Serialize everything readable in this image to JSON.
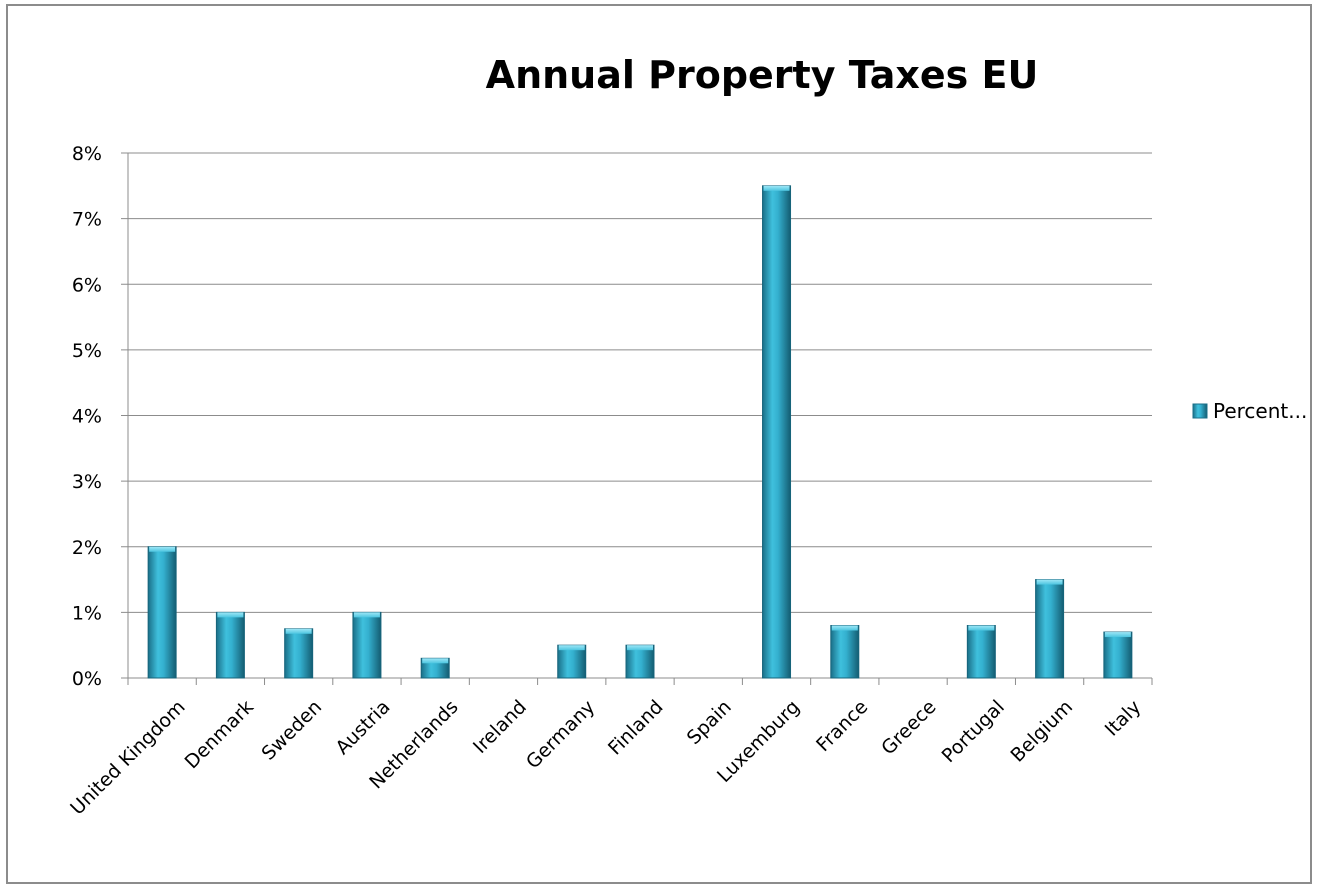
{
  "chart_data": {
    "type": "bar",
    "title": "Annual Property Taxes EU",
    "categories": [
      "United Kingdom",
      "Denmark",
      "Sweden",
      "Austria",
      "Netherlands",
      "Ireland",
      "Germany",
      "Finland",
      "Spain",
      "Luxemburg",
      "France",
      "Greece",
      "Portugal",
      "Belgium",
      "Italy"
    ],
    "series": [
      {
        "name": "Percent...",
        "values": [
          2.0,
          1.0,
          0.75,
          1.0,
          0.3,
          0,
          0.5,
          0.5,
          0,
          7.5,
          0.8,
          0,
          0.8,
          1.5,
          0.7
        ]
      }
    ],
    "ylim": [
      0,
      8
    ],
    "yticks": [
      0,
      1,
      2,
      3,
      4,
      5,
      6,
      7,
      8
    ],
    "ytick_labels": [
      "0%",
      "1%",
      "2%",
      "3%",
      "4%",
      "5%",
      "6%",
      "7%",
      "8%"
    ],
    "grid": true,
    "legend_position": "right",
    "bar_color": "#2fa8c6"
  }
}
